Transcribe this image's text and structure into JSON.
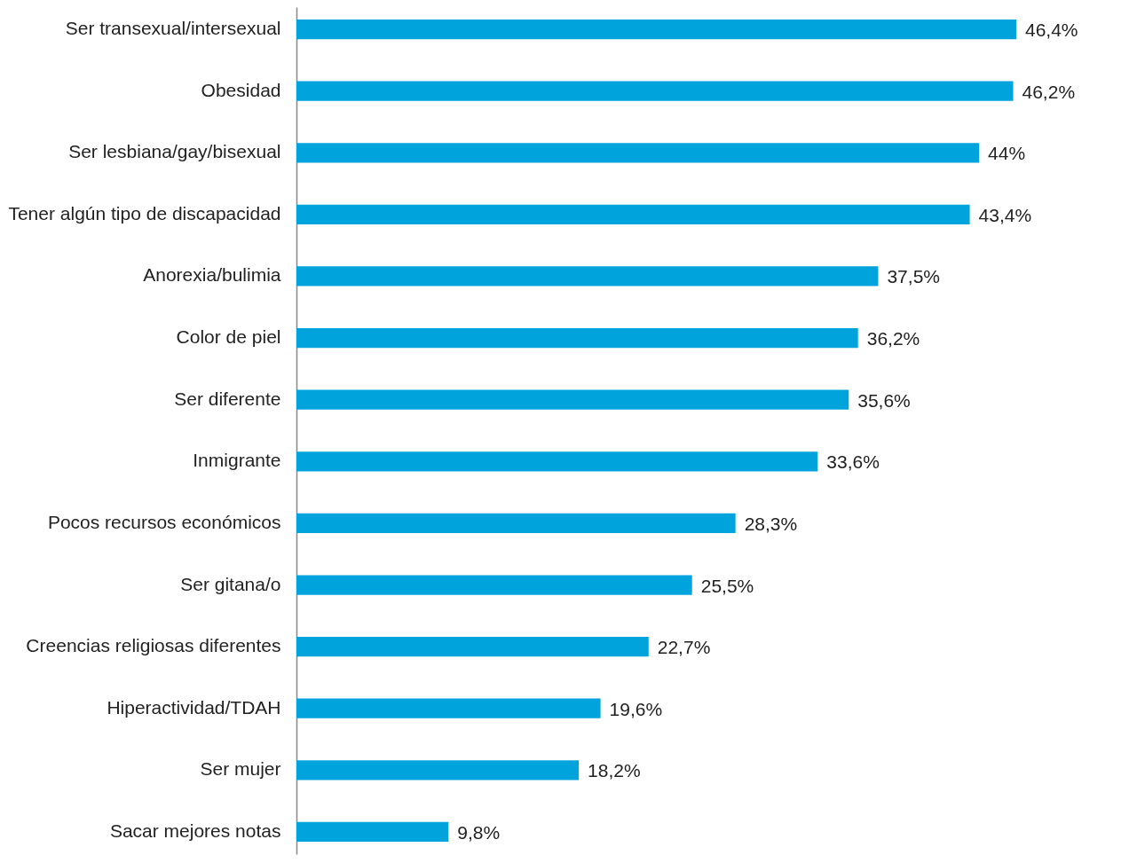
{
  "chart_data": {
    "type": "bar",
    "orientation": "horizontal",
    "color": "#00a3dc",
    "categories": [
      "Ser transexual/intersexual",
      "Obesidad",
      "Ser lesbiana/gay/bisexual",
      "Tener algún tipo de discapacidad",
      "Anorexia/bulimia",
      "Color de piel",
      "Ser diferente",
      "Inmigrante",
      "Pocos recursos económicos",
      "Ser gitana/o",
      "Creencias religiosas diferentes",
      "Hiperactividad/TDAH",
      "Ser mujer",
      "Sacar mejores notas"
    ],
    "values": [
      46.4,
      46.2,
      44,
      43.4,
      37.5,
      36.2,
      35.6,
      33.6,
      28.3,
      25.5,
      22.7,
      19.6,
      18.2,
      9.8
    ],
    "value_labels": [
      "46,4%",
      "46,2%",
      "44%",
      "43,4%",
      "37,5%",
      "36,2%",
      "35,6%",
      "33,6%",
      "28,3%",
      "25,5%",
      "22,7%",
      "19,6%",
      "18,2%",
      "9,8%"
    ]
  }
}
